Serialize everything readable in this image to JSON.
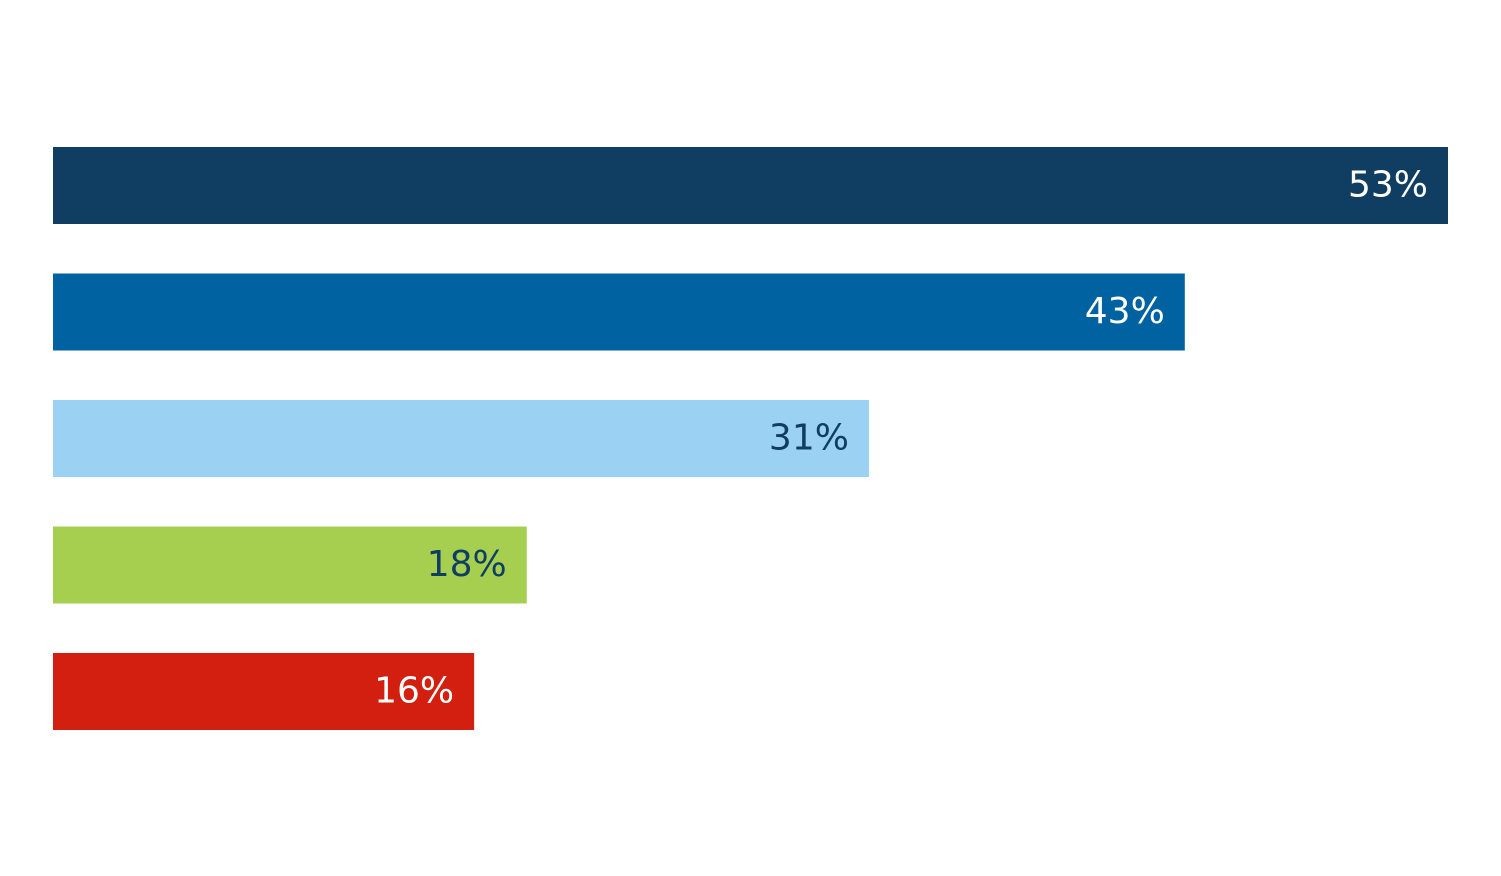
{
  "chart_data": {
    "type": "hbar",
    "values": [
      53,
      43,
      31,
      18,
      16
    ],
    "value_labels": [
      "53%",
      "43%",
      "31%",
      "18%",
      "16%"
    ],
    "colors": [
      "#103d62",
      "#0062a1",
      "#9bd1f2",
      "#a6cf50",
      "#d21f10"
    ],
    "label_colors": [
      "#ffffff",
      "#ffffff",
      "#103d62",
      "#103d62",
      "#ffffff"
    ],
    "xlim": [
      0,
      53
    ]
  }
}
